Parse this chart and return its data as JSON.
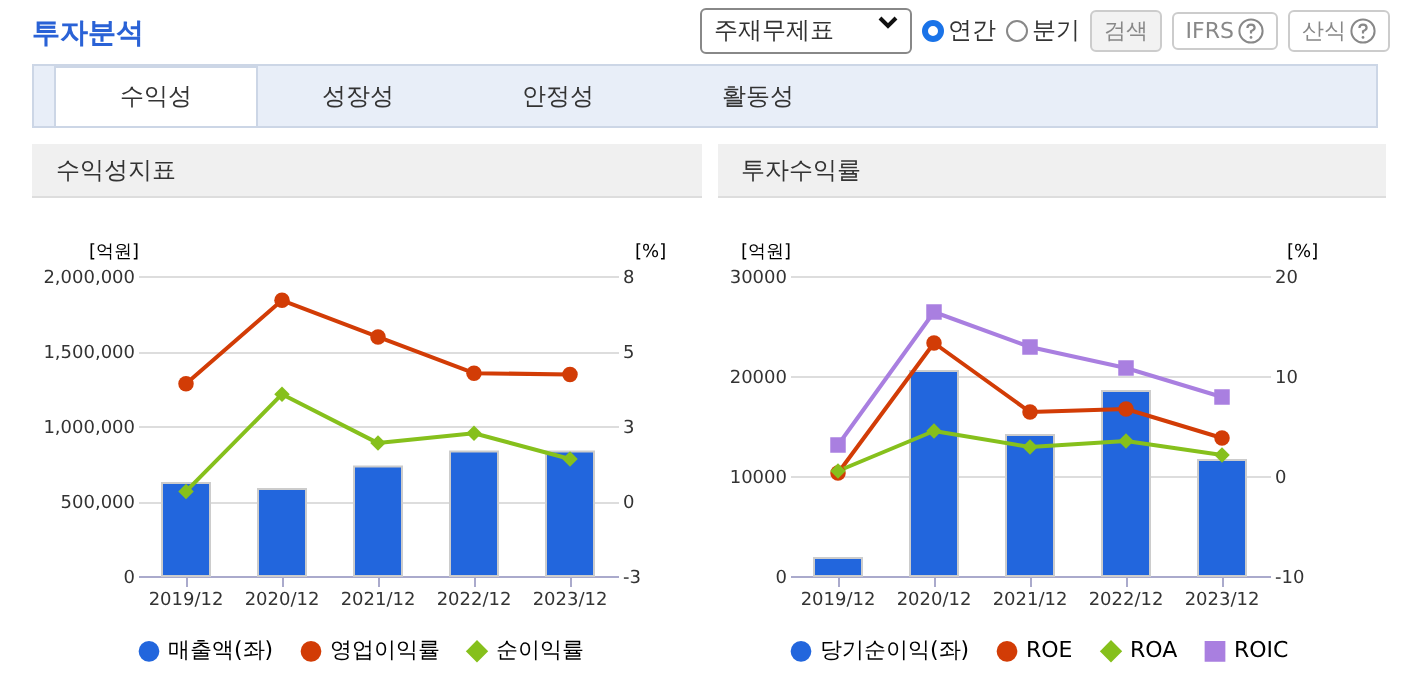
{
  "chart_data": [
    {
      "type": "bar",
      "title": "수익성지표",
      "annotations": [
        "투자분석",
        "수익성",
        "성장성",
        "안정성",
        "활동성",
        "주재무제표",
        "연간",
        "분기",
        "검색",
        "IFRS",
        "산식"
      ],
      "ylabel": "[억원]",
      "y2label": "[%]",
      "categories": [
        "2019/12",
        "2020/12",
        "2021/12",
        "2022/12",
        "2023/12"
      ],
      "ylim": [
        0,
        2000000
      ],
      "yticks": [
        0,
        {
          "value": 500000,
          "label": "500,000"
        },
        {
          "value": 1000000,
          "label": "1,000,000"
        },
        {
          "value": 1500000,
          "label": "1,500,000"
        },
        {
          "value": 2000000,
          "label": "2,000,000"
        }
      ],
      "y2lim": [
        -2.5,
        7.5
      ],
      "y2ticks": [
        {
          "value": -2.5,
          "label": "-3"
        },
        0,
        {
          "value": 2.5,
          "label": "3"
        },
        5,
        {
          "value": 7.5,
          "label": "8"
        }
      ],
      "grid": "y",
      "legend": "bottom",
      "series": [
        {
          "name": "매출액(좌)",
          "color": "#2266dd",
          "values": [
            620000,
            580000,
            730000,
            830000,
            830000
          ]
        },
        {
          "name": "영업이익률",
          "type": "line",
          "axis": "y2",
          "marker": "circle",
          "color": "#d23c06",
          "values": [
            3.91,
            6.69,
            5.47,
            4.26,
            4.22
          ]
        },
        {
          "name": "순이익률",
          "type": "line",
          "axis": "y2",
          "marker": "diamond",
          "color": "#86c01c",
          "values": [
            0.32,
            3.56,
            1.93,
            2.26,
            1.4
          ]
        }
      ]
    },
    {
      "type": "bar",
      "title": "투자수익률",
      "ylabel": "[억원]",
      "y2label": "[%]",
      "categories": [
        "2019/12",
        "2020/12",
        "2021/12",
        "2022/12",
        "2023/12"
      ],
      "ylim": [
        0,
        30000
      ],
      "yticks": [
        0,
        10000,
        20000,
        30000
      ],
      "y2lim": [
        -10,
        20
      ],
      "y2ticks": [
        -10,
        0,
        10,
        20
      ],
      "grid": "y",
      "legend": "bottom",
      "series": [
        {
          "name": "당기순이익(좌)",
          "color": "#2266dd",
          "values": [
            1800,
            20500,
            14100,
            18500,
            11600
          ]
        },
        {
          "name": "ROE",
          "type": "line",
          "axis": "y2",
          "marker": "circle",
          "color": "#d23c06",
          "values": [
            0.3,
            13.3,
            6.4,
            6.7,
            3.8
          ]
        },
        {
          "name": "ROA",
          "type": "line",
          "axis": "y2",
          "marker": "diamond",
          "color": "#86c01c",
          "values": [
            0.5,
            4.5,
            2.9,
            3.5,
            2.1
          ]
        },
        {
          "name": "ROIC",
          "type": "line",
          "axis": "y2",
          "marker": "square",
          "color": "#a97fe0",
          "values": [
            3.1,
            16.4,
            12.9,
            10.8,
            7.9
          ]
        }
      ]
    }
  ]
}
